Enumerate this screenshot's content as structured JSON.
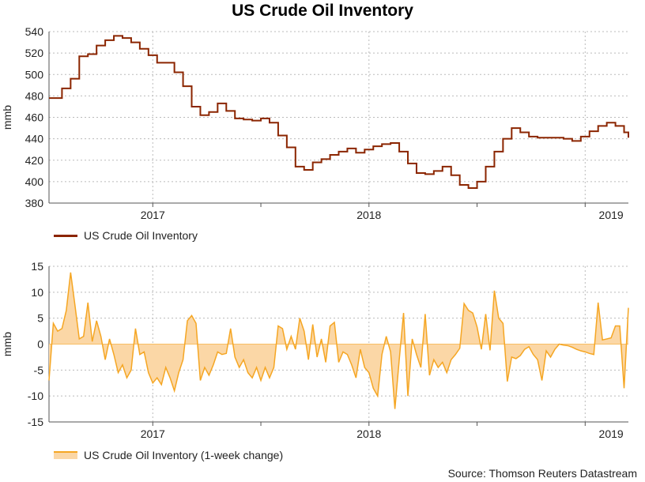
{
  "colors": {
    "top_line": "#8b2500",
    "bottom_fill": "#fbd7a6",
    "bottom_line": "#f5a623",
    "grid": "#bbbbbb",
    "axis": "#555555"
  },
  "chart_data": [
    {
      "type": "line",
      "title": "US Crude Oil Inventory",
      "ylabel": "mmb",
      "xlabel": "",
      "ylim": [
        380,
        540
      ],
      "yticks": [
        380,
        400,
        420,
        440,
        460,
        480,
        500,
        520,
        540
      ],
      "xlim": [
        2016.52,
        2019.2
      ],
      "xtick_labels": [
        "2017",
        "2018",
        "2019"
      ],
      "grid": true,
      "legend_label": "US Crude Oil Inventory",
      "x": [
        2016.52,
        2016.58,
        2016.62,
        2016.66,
        2016.7,
        2016.74,
        2016.78,
        2016.82,
        2016.86,
        2016.9,
        2016.94,
        2016.98,
        2017.02,
        2017.06,
        2017.1,
        2017.14,
        2017.18,
        2017.22,
        2017.26,
        2017.3,
        2017.34,
        2017.38,
        2017.42,
        2017.46,
        2017.5,
        2017.54,
        2017.58,
        2017.62,
        2017.66,
        2017.7,
        2017.74,
        2017.78,
        2017.82,
        2017.86,
        2017.9,
        2017.94,
        2017.98,
        2018.02,
        2018.06,
        2018.1,
        2018.14,
        2018.18,
        2018.22,
        2018.26,
        2018.3,
        2018.34,
        2018.38,
        2018.42,
        2018.46,
        2018.5,
        2018.54,
        2018.58,
        2018.62,
        2018.66,
        2018.7,
        2018.74,
        2018.78,
        2018.82,
        2018.86,
        2018.9,
        2018.94,
        2018.98,
        2019.02,
        2019.06,
        2019.1,
        2019.14,
        2019.18,
        2019.2
      ],
      "y": [
        478,
        487,
        496,
        517,
        519,
        527,
        532,
        536,
        534,
        530,
        524,
        518,
        511,
        511,
        502,
        489,
        470,
        462,
        465,
        473,
        466,
        459,
        458,
        457,
        459,
        455,
        443,
        432,
        414,
        411,
        418,
        421,
        425,
        428,
        431,
        427,
        430,
        433,
        435,
        436,
        428,
        417,
        408,
        407,
        410,
        414,
        406,
        397,
        394,
        400,
        414,
        428,
        440,
        450,
        446,
        442,
        441,
        441,
        441,
        440,
        438,
        442,
        447,
        452,
        455,
        452,
        446,
        441
      ]
    },
    {
      "type": "area",
      "title": "",
      "ylabel": "mmb",
      "xlabel": "",
      "ylim": [
        -15,
        15
      ],
      "yticks": [
        -15,
        -10,
        -5,
        0,
        5,
        10,
        15
      ],
      "xlim": [
        2016.52,
        2019.2
      ],
      "xtick_labels": [
        "2017",
        "2018",
        "2019"
      ],
      "grid": true,
      "legend_label": "US Crude Oil Inventory (1-week change)",
      "x": [
        2016.52,
        2016.54,
        2016.56,
        2016.58,
        2016.6,
        2016.62,
        2016.64,
        2016.66,
        2016.68,
        2016.7,
        2016.72,
        2016.74,
        2016.76,
        2016.78,
        2016.8,
        2016.82,
        2016.84,
        2016.86,
        2016.88,
        2016.9,
        2016.92,
        2016.94,
        2016.96,
        2016.98,
        2017.0,
        2017.02,
        2017.04,
        2017.06,
        2017.08,
        2017.1,
        2017.12,
        2017.14,
        2017.16,
        2017.18,
        2017.2,
        2017.22,
        2017.24,
        2017.26,
        2017.28,
        2017.3,
        2017.32,
        2017.34,
        2017.36,
        2017.38,
        2017.4,
        2017.42,
        2017.44,
        2017.46,
        2017.48,
        2017.5,
        2017.52,
        2017.54,
        2017.56,
        2017.58,
        2017.6,
        2017.62,
        2017.64,
        2017.66,
        2017.68,
        2017.7,
        2017.72,
        2017.74,
        2017.76,
        2017.78,
        2017.8,
        2017.82,
        2017.84,
        2017.86,
        2017.88,
        2017.9,
        2017.92,
        2017.94,
        2017.96,
        2017.98,
        2018.0,
        2018.02,
        2018.04,
        2018.06,
        2018.08,
        2018.1,
        2018.12,
        2018.14,
        2018.16,
        2018.18,
        2018.2,
        2018.22,
        2018.24,
        2018.26,
        2018.28,
        2018.3,
        2018.32,
        2018.34,
        2018.36,
        2018.38,
        2018.4,
        2018.42,
        2018.44,
        2018.46,
        2018.48,
        2018.5,
        2018.52,
        2018.54,
        2018.56,
        2018.58,
        2018.6,
        2018.62,
        2018.64,
        2018.66,
        2018.68,
        2018.7,
        2018.72,
        2018.74,
        2018.76,
        2018.78,
        2018.8,
        2018.82,
        2018.84,
        2018.86,
        2018.88,
        2018.9,
        2018.92,
        2018.94,
        2018.96,
        2018.98,
        2019.0,
        2019.02,
        2019.04,
        2019.06,
        2019.08,
        2019.1,
        2019.12,
        2019.14,
        2019.16,
        2019.18,
        2019.2
      ],
      "y": [
        -7,
        4,
        2.5,
        3,
        6.5,
        13.8,
        7.5,
        1,
        1.5,
        8,
        0.5,
        4.5,
        1.5,
        -3,
        1,
        -2,
        -5.5,
        -4,
        -6.5,
        -5,
        3,
        -2,
        -1.5,
        -5.5,
        -7.5,
        -6.5,
        -7.8,
        -4.5,
        -6.5,
        -9,
        -5.5,
        -3,
        4.5,
        5.5,
        4,
        -7,
        -4.5,
        -6,
        -4,
        -1.5,
        -2,
        -1.8,
        3,
        -2.5,
        -4.5,
        -3,
        -5.5,
        -6.5,
        -4.5,
        -7,
        -4.5,
        -6.5,
        -4.5,
        3.5,
        3,
        -1,
        1.5,
        -1,
        5,
        2.5,
        -3,
        3.8,
        -2.5,
        1,
        -3.5,
        3.5,
        4.2,
        -3.5,
        -1.5,
        -2,
        -4,
        -6.5,
        -1,
        -4.5,
        -5.5,
        -8.5,
        -10,
        -2,
        1.5,
        -1.5,
        -12.5,
        -3,
        6,
        -10,
        1,
        -2,
        -4.5,
        5.8,
        -6,
        -3,
        -4.5,
        -3.5,
        -5.5,
        -3,
        -2,
        -0.8,
        7.8,
        6.5,
        6,
        3.3,
        -1,
        5.8,
        -1.2,
        10.3,
        5,
        4,
        -7.2,
        -2.5,
        -2.8,
        -2.2,
        -1,
        -0.5,
        -2,
        -3,
        -7,
        -1.3,
        -2.5,
        -1,
        0,
        -0.2,
        -0.3,
        -0.6,
        -1,
        -1.3,
        -1.5,
        -1.8,
        -2,
        8,
        0.8,
        1,
        1.2,
        3.5,
        3.5,
        -8.5,
        7
      ]
    }
  ],
  "legend_top": {
    "label": "US Crude Oil Inventory"
  },
  "legend_bottom": {
    "label": "US Crude Oil Inventory (1-week change)"
  },
  "source": "Source: Thomson Reuters Datastream"
}
